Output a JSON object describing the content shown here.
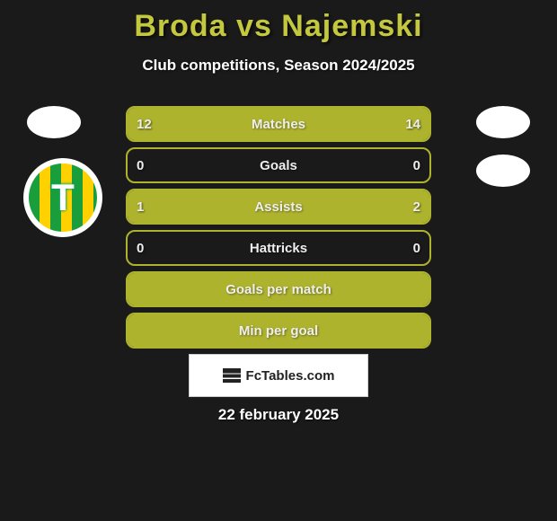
{
  "title": "Broda vs Najemski",
  "subtitle": "Club competitions, Season 2024/2025",
  "watermark_text": "FcTables.com",
  "date": "22 february 2025",
  "colors": {
    "accent": "#aeb32e",
    "title": "#c4c83e",
    "bg": "#1a1a1a",
    "text": "#ffffff"
  },
  "stats": [
    {
      "label": "Matches",
      "left_val": "12",
      "right_val": "14",
      "left_pct": 46,
      "right_pct": 54
    },
    {
      "label": "Goals",
      "left_val": "0",
      "right_val": "0",
      "left_pct": 0,
      "right_pct": 0
    },
    {
      "label": "Assists",
      "left_val": "1",
      "right_val": "2",
      "left_pct": 33,
      "right_pct": 67
    },
    {
      "label": "Hattricks",
      "left_val": "0",
      "right_val": "0",
      "left_pct": 0,
      "right_pct": 0
    },
    {
      "label": "Goals per match",
      "left_val": "",
      "right_val": "",
      "left_pct": 100,
      "right_pct": 0,
      "full": true
    },
    {
      "label": "Min per goal",
      "left_val": "",
      "right_val": "",
      "left_pct": 100,
      "right_pct": 0,
      "full": true
    }
  ]
}
